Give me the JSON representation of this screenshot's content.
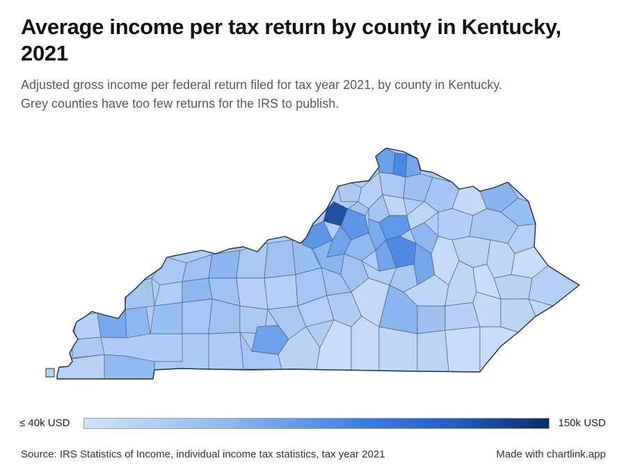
{
  "title": "Average income per tax return by county in Kentucky, 2021",
  "subtitle_line1": "Adjusted gross income per federal return filed for tax year 2021, by county in Kentucky.",
  "subtitle_line2": "Grey counties have too few returns for the IRS to publish.",
  "legend": {
    "min_label": "≤ 40k USD",
    "max_label": "150k USD",
    "min_color": "#cfe3fb",
    "max_color": "#0b2e66"
  },
  "source": "Source: IRS Statistics of Income, individual income tax statistics, tax year 2021",
  "credit": "Made with chartlink.app",
  "map": {
    "region": "Kentucky",
    "border_color": "#1f2a44",
    "county_stroke": "#4a5a75",
    "highest_color": "#1c4f9c",
    "high_color": "#4e8ee6",
    "mid_color": "#86b4ee",
    "low_color": "#b9d4f6",
    "lowest_color": "#cfe2fa"
  }
}
